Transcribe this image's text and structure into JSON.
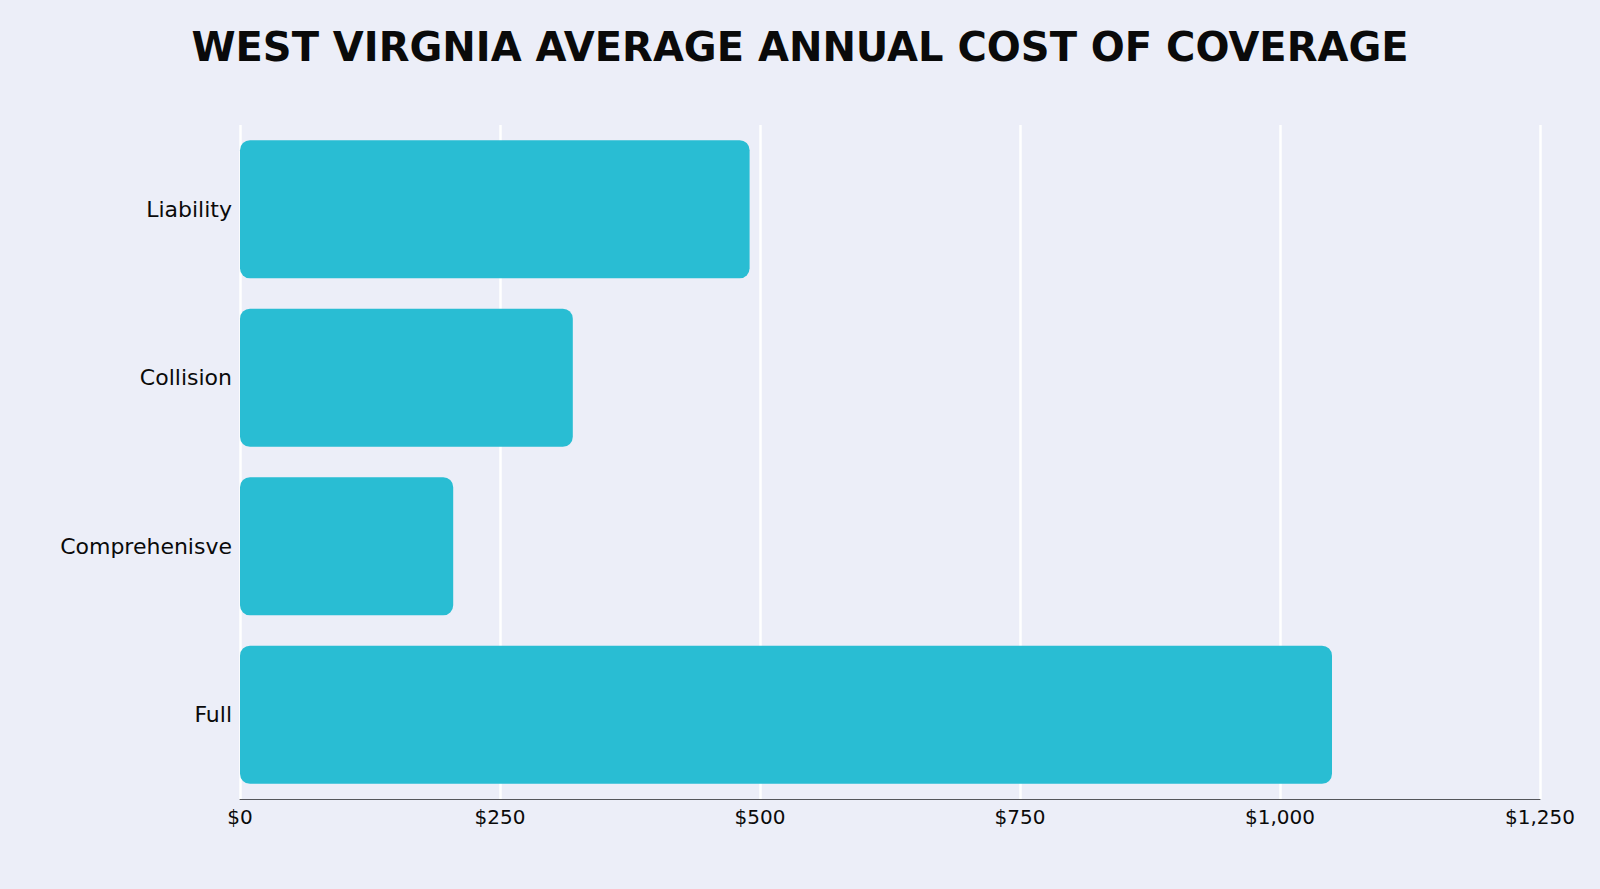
{
  "chart_data": {
    "type": "bar",
    "orientation": "horizontal",
    "title": "WEST VIRGNIA AVERAGE ANNUAL COST OF COVERAGE",
    "categories": [
      "Liability",
      "Collision",
      "Comprehenisve",
      "Full"
    ],
    "values": [
      490,
      320,
      205,
      1050
    ],
    "color": "#29BDD3",
    "xlim": [
      0,
      1250
    ],
    "xticks": [
      {
        "value": 0,
        "label": "$0"
      },
      {
        "value": 250,
        "label": "$250"
      },
      {
        "value": 500,
        "label": "$500"
      },
      {
        "value": 750,
        "label": "$750"
      },
      {
        "value": 1000,
        "label": "$1,000"
      },
      {
        "value": 1250,
        "label": "$1,250"
      }
    ],
    "grid": true
  }
}
